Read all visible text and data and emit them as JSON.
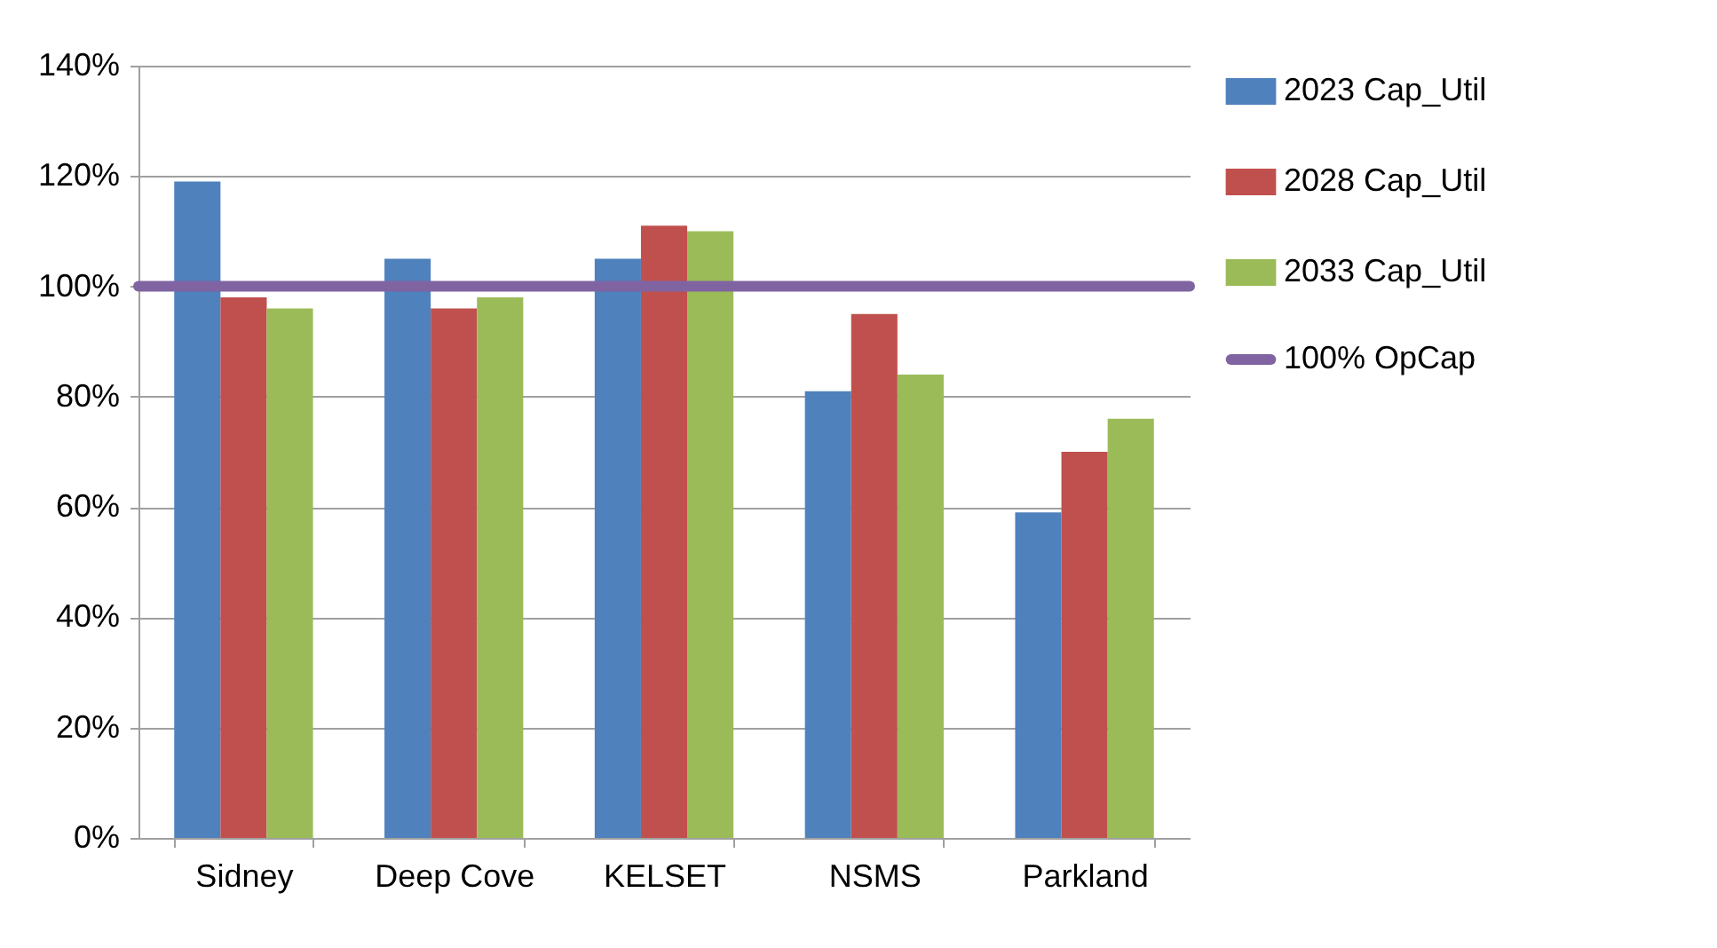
{
  "chart_data": {
    "type": "bar",
    "categories": [
      "Sidney",
      "Deep Cove",
      "KELSET",
      "NSMS",
      "Parkland"
    ],
    "series": [
      {
        "name": "2023 Cap_Util",
        "color": "#4f81bd",
        "values": [
          119,
          105,
          105,
          81,
          59
        ]
      },
      {
        "name": "2028 Cap_Util",
        "color": "#c0504d",
        "values": [
          98,
          96,
          111,
          95,
          70
        ]
      },
      {
        "name": "2033 Cap_Util",
        "color": "#9bbb59",
        "values": [
          96,
          98,
          110,
          84,
          76
        ]
      }
    ],
    "ref_lines": [
      {
        "axis": "y",
        "value": 100,
        "label": "100% OpCap",
        "color": "#8064a2"
      }
    ],
    "ylim": [
      0,
      140
    ],
    "yticks": [
      {
        "value": 0,
        "label": "0%"
      },
      {
        "value": 20,
        "label": "20%"
      },
      {
        "value": 40,
        "label": "40%"
      },
      {
        "value": 60,
        "label": "60%"
      },
      {
        "value": 80,
        "label": "80%"
      },
      {
        "value": 100,
        "label": "100%"
      },
      {
        "value": 120,
        "label": "120%"
      },
      {
        "value": 140,
        "label": "140%"
      }
    ],
    "grid": "y",
    "legend": "right"
  }
}
